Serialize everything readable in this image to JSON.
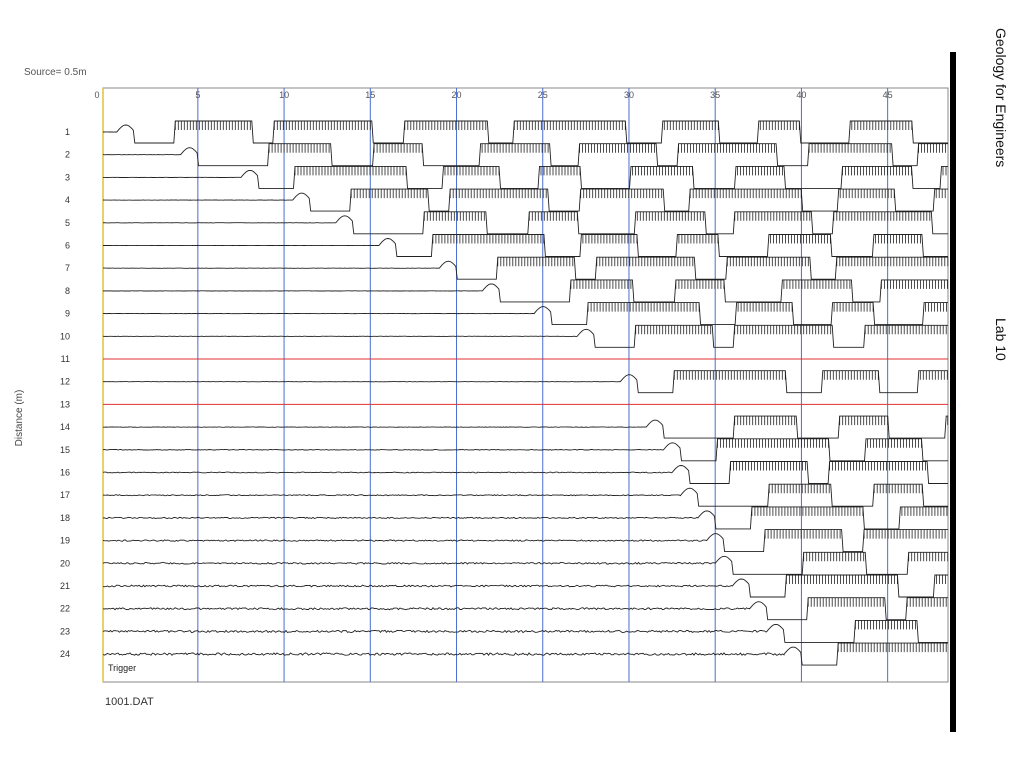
{
  "header": {
    "course": "Geology for Engineers",
    "lab": "Lab 10"
  },
  "chart_data": {
    "type": "line",
    "subtype": "seismic-record",
    "source_label": "Source= 0.5m",
    "file_label": "1001.DAT",
    "trigger_label": "Trigger",
    "ylabel": "Distance (m)",
    "xlabel": "",
    "x_ticks": [
      0,
      5,
      10,
      15,
      20,
      25,
      30,
      35,
      40,
      45
    ],
    "xlim": [
      0,
      49
    ],
    "gridlines_x": [
      5.5,
      10.5,
      15.5,
      20.5,
      25.5,
      30.5,
      35.5,
      40.5,
      45.5
    ],
    "channels": [
      1,
      2,
      3,
      4,
      5,
      6,
      7,
      8,
      9,
      10,
      11,
      12,
      13,
      14,
      15,
      16,
      17,
      18,
      19,
      20,
      21,
      22,
      23,
      24
    ],
    "dead_channels": [
      11,
      13
    ],
    "first_break_ms": [
      0.8,
      4.5,
      8.0,
      11.0,
      13.5,
      16.0,
      19.5,
      22.0,
      25.0,
      27.5,
      null,
      30.0,
      null,
      31.5,
      32.5,
      33.0,
      33.5,
      34.5,
      35.0,
      35.5,
      36.5,
      37.5,
      38.5,
      39.5
    ],
    "colors": {
      "gridline": "#4a6fd0",
      "trigger_line": "#e0c040",
      "dead_trace": "#e03030",
      "trace": "#222222",
      "frame": "#888888"
    }
  }
}
